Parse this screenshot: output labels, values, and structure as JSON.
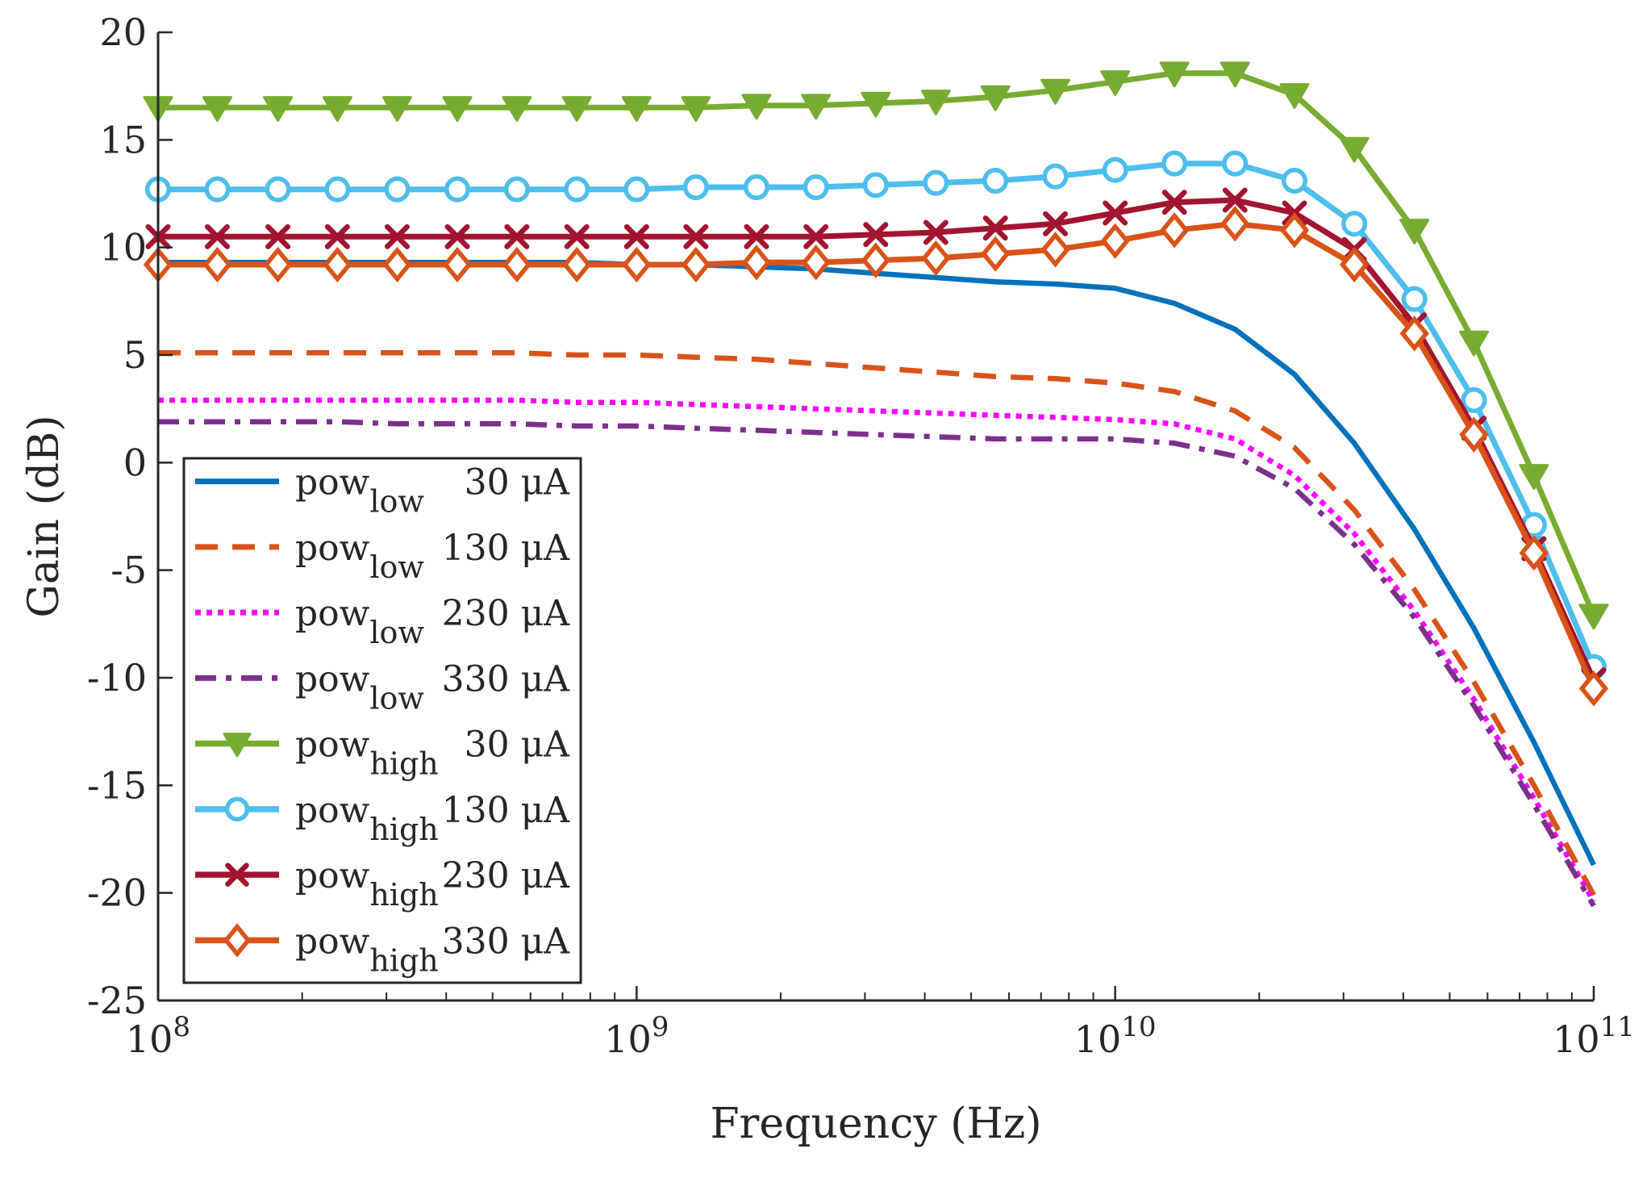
{
  "chart_data": {
    "type": "line",
    "xlabel": "Frequency (Hz)",
    "ylabel": "Gain (dB)",
    "x_scale": "log",
    "xlim": [
      100000000,
      100000000000
    ],
    "ylim": [
      -25,
      20
    ],
    "grid": false,
    "legend_position": "bottom-left",
    "x_ticks": [
      {
        "value": 100000000,
        "base": "10",
        "exp": "8"
      },
      {
        "value": 1000000000,
        "base": "10",
        "exp": "9"
      },
      {
        "value": 10000000000,
        "base": "10",
        "exp": "10"
      },
      {
        "value": 100000000000,
        "base": "10",
        "exp": "11"
      }
    ],
    "y_ticks": [
      {
        "value": 20,
        "label": "20"
      },
      {
        "value": 15,
        "label": "15"
      },
      {
        "value": 10,
        "label": "10"
      },
      {
        "value": 5,
        "label": "5"
      },
      {
        "value": 0,
        "label": "0"
      },
      {
        "value": -5,
        "label": "-5"
      },
      {
        "value": -10,
        "label": "-10"
      },
      {
        "value": -15,
        "label": "-15"
      },
      {
        "value": -20,
        "label": "-20"
      },
      {
        "value": -25,
        "label": "-25"
      }
    ],
    "x": [
      100000000,
      133000000,
      178000000,
      237000000,
      316000000,
      422000000,
      562000000,
      750000000,
      1000000000,
      1330000000,
      1780000000,
      2370000000,
      3160000000,
      4220000000,
      5620000000,
      7500000000,
      10000000000,
      13300000000,
      17800000000,
      23700000000,
      31600000000,
      42200000000,
      56200000000,
      75000000000,
      100000000000
    ],
    "series": [
      {
        "name_base": "pow",
        "name_sub": "low",
        "current": "30 μA",
        "color": "#0072BD",
        "dash": "solid",
        "marker": "none",
        "values": [
          9.3,
          9.3,
          9.3,
          9.3,
          9.3,
          9.3,
          9.3,
          9.3,
          9.2,
          9.2,
          9.1,
          9.0,
          8.8,
          8.6,
          8.4,
          8.3,
          8.1,
          7.4,
          6.2,
          4.1,
          0.9,
          -3.1,
          -7.7,
          -13.0,
          -18.7
        ]
      },
      {
        "name_base": "pow",
        "name_sub": "low",
        "current": "130 μA",
        "color": "#D95319",
        "dash": "dashed",
        "marker": "none",
        "values": [
          5.1,
          5.1,
          5.1,
          5.1,
          5.1,
          5.1,
          5.1,
          5.0,
          5.0,
          4.9,
          4.8,
          4.6,
          4.4,
          4.2,
          4.0,
          3.9,
          3.7,
          3.3,
          2.4,
          0.7,
          -2.2,
          -5.9,
          -10.2,
          -15.0,
          -20.1
        ]
      },
      {
        "name_base": "pow",
        "name_sub": "low",
        "current": "230 μA",
        "color": "#FF00FF",
        "dash": "dotted",
        "marker": "none",
        "values": [
          2.9,
          2.9,
          2.9,
          2.9,
          2.9,
          2.9,
          2.9,
          2.8,
          2.8,
          2.7,
          2.6,
          2.5,
          2.4,
          2.3,
          2.2,
          2.1,
          2.0,
          1.8,
          1.1,
          -0.6,
          -3.3,
          -6.9,
          -11.0,
          -15.6,
          -20.4
        ]
      },
      {
        "name_base": "pow",
        "name_sub": "low",
        "current": "330 μA",
        "color": "#7E2F8E",
        "dash": "dashdot",
        "marker": "none",
        "values": [
          1.9,
          1.9,
          1.9,
          1.9,
          1.8,
          1.8,
          1.8,
          1.7,
          1.7,
          1.6,
          1.5,
          1.4,
          1.3,
          1.2,
          1.1,
          1.1,
          1.1,
          0.9,
          0.3,
          -1.2,
          -3.8,
          -7.2,
          -11.3,
          -15.9,
          -20.6
        ]
      },
      {
        "name_base": "pow",
        "name_sub": "high",
        "current": "30 μA",
        "color": "#77AC30",
        "dash": "solid",
        "marker": "triangle-down",
        "values": [
          16.5,
          16.5,
          16.5,
          16.5,
          16.5,
          16.5,
          16.5,
          16.5,
          16.5,
          16.5,
          16.6,
          16.6,
          16.7,
          16.8,
          17.0,
          17.3,
          17.7,
          18.1,
          18.1,
          17.1,
          14.6,
          10.8,
          5.6,
          -0.6,
          -7.1
        ]
      },
      {
        "name_base": "pow",
        "name_sub": "high",
        "current": "130 μA",
        "color": "#4DBEEE",
        "dash": "solid",
        "marker": "circle",
        "values": [
          12.7,
          12.7,
          12.7,
          12.7,
          12.7,
          12.7,
          12.7,
          12.7,
          12.7,
          12.8,
          12.8,
          12.8,
          12.9,
          13.0,
          13.1,
          13.3,
          13.6,
          13.9,
          13.9,
          13.1,
          11.1,
          7.6,
          2.9,
          -2.9,
          -9.5
        ]
      },
      {
        "name_base": "pow",
        "name_sub": "high",
        "current": "230 μA",
        "color": "#A2142F",
        "dash": "solid",
        "marker": "x",
        "values": [
          10.5,
          10.5,
          10.5,
          10.5,
          10.5,
          10.5,
          10.5,
          10.5,
          10.5,
          10.5,
          10.5,
          10.5,
          10.6,
          10.7,
          10.9,
          11.1,
          11.6,
          12.1,
          12.2,
          11.6,
          9.9,
          6.4,
          1.6,
          -4.0,
          -10.1
        ]
      },
      {
        "name_base": "pow",
        "name_sub": "high",
        "current": "330 μA",
        "color": "#D95319",
        "dash": "solid",
        "marker": "diamond",
        "values": [
          9.2,
          9.2,
          9.2,
          9.2,
          9.2,
          9.2,
          9.2,
          9.2,
          9.2,
          9.2,
          9.3,
          9.3,
          9.4,
          9.5,
          9.7,
          9.9,
          10.3,
          10.8,
          11.1,
          10.8,
          9.2,
          6.0,
          1.3,
          -4.2,
          -10.5
        ]
      }
    ]
  }
}
